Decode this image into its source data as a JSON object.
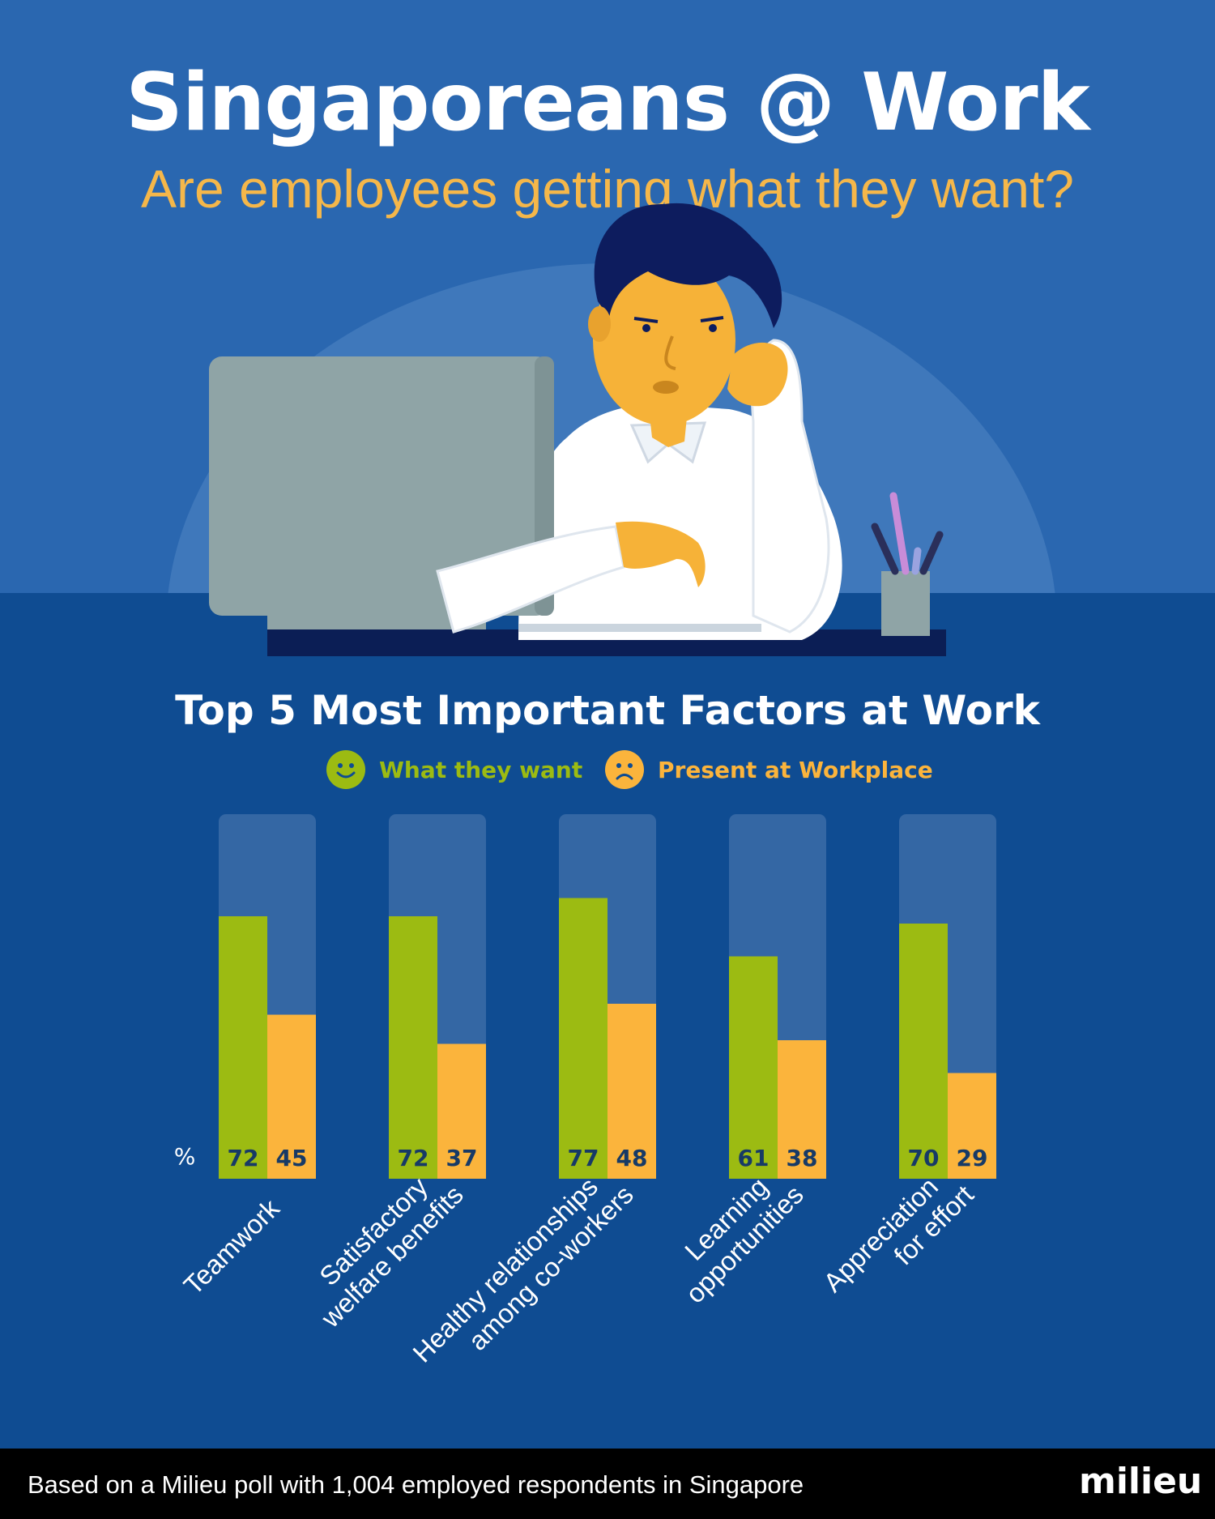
{
  "header": {
    "title": "Singaporeans @ Work",
    "subtitle": "Are employees getting what they want?"
  },
  "legend": {
    "want_label": "What they want",
    "present_label": "Present at Workplace",
    "want_icon": "smiley-icon",
    "present_icon": "frown-icon"
  },
  "colors": {
    "want": "#9cbb12",
    "present": "#fbb43c",
    "track": "#3467a4",
    "value_text": "#173a66"
  },
  "chart_data": {
    "type": "bar",
    "title": "Top 5 Most Important Factors at Work",
    "unit_label": "%",
    "ylim": [
      0,
      100
    ],
    "categories": [
      "Teamwork",
      "Satisfactory welfare benefits",
      "Healthy relationships among co-workers",
      "Learning opportunities",
      "Appreciation for effort"
    ],
    "category_lines": [
      [
        "Teamwork"
      ],
      [
        "Satisfactory",
        "welfare benefits"
      ],
      [
        "Healthy relationships",
        "among co-workers"
      ],
      [
        "Learning",
        "opportunities"
      ],
      [
        "Appreciation",
        "for effort"
      ]
    ],
    "series": [
      {
        "name": "What they want",
        "values": [
          72,
          72,
          77,
          61,
          70
        ]
      },
      {
        "name": "Present at Workplace",
        "values": [
          45,
          37,
          48,
          38,
          29
        ]
      }
    ]
  },
  "footer": {
    "note": "Based on a Milieu poll with 1,004 employed respondents in Singapore",
    "brand": "milieu"
  }
}
